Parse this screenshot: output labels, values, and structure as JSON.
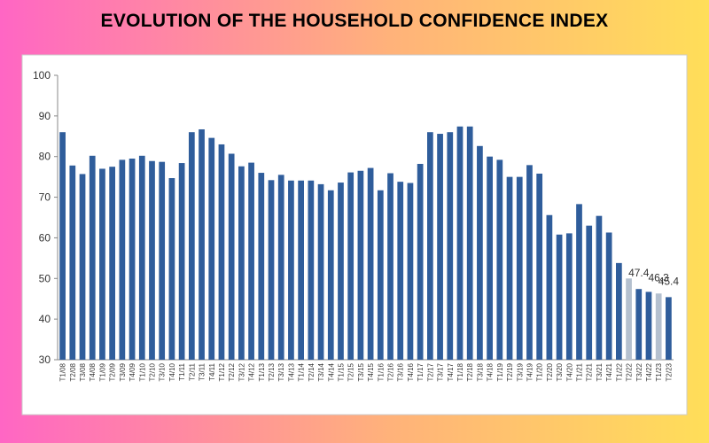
{
  "chart_data": {
    "type": "bar",
    "title": "EVOLUTION OF THE HOUSEHOLD CONFIDENCE INDEX",
    "categories": [
      "T1/08",
      "T2/08",
      "T3/08",
      "T4/08",
      "T1/09",
      "T2/09",
      "T3/09",
      "T4/09",
      "T1/10",
      "T2/10",
      "T3/10",
      "T4/10",
      "T1/11",
      "T2/11",
      "T3/11",
      "T4/11",
      "T1/12",
      "T2/12",
      "T3/12",
      "T4/12",
      "T1/13",
      "T2/13",
      "T3/13",
      "T4/13",
      "T1/14",
      "T2/14",
      "T3/14",
      "T4/14",
      "T1/15",
      "T2/15",
      "T3/15",
      "T4/15",
      "T1/16",
      "T2/16",
      "T3/16",
      "T4/16",
      "T1/17",
      "T2/17",
      "T3/17",
      "T4/17",
      "T1/18",
      "T2/18",
      "T3/18",
      "T4/18",
      "T1/19",
      "T2/19",
      "T3/19",
      "T4/19",
      "T1/20",
      "T2/20",
      "T3/20",
      "T4/20",
      "T1/21",
      "T2/21",
      "T3/21",
      "T4/21",
      "T1/22",
      "T2/22",
      "T3/22",
      "T4/22",
      "T1/23",
      "T2/23"
    ],
    "values": [
      86,
      77.8,
      75.7,
      80.2,
      77,
      77.5,
      79.2,
      79.5,
      80.2,
      78.9,
      78.7,
      74.7,
      78.4,
      86,
      86.7,
      84.6,
      83,
      80.7,
      77.6,
      78.5,
      76,
      74.2,
      75.5,
      74.1,
      74.1,
      74.1,
      73.2,
      71.7,
      73.6,
      76.1,
      76.5,
      77.2,
      71.7,
      75.9,
      73.8,
      73.5,
      78.2,
      86,
      85.6,
      86,
      87.4,
      87.4,
      82.6,
      80,
      79.2,
      75,
      75,
      77.9,
      75.8,
      65.6,
      60.8,
      61.1,
      68.3,
      63,
      65.4,
      61.3,
      53.8,
      50,
      47.4,
      46.7,
      46.3,
      45.4
    ],
    "value_labels": [
      null,
      null,
      null,
      null,
      null,
      null,
      null,
      null,
      null,
      null,
      null,
      null,
      null,
      null,
      null,
      null,
      null,
      null,
      null,
      null,
      null,
      null,
      null,
      null,
      null,
      null,
      null,
      null,
      null,
      null,
      null,
      null,
      null,
      null,
      null,
      null,
      null,
      null,
      null,
      null,
      null,
      null,
      null,
      null,
      null,
      null,
      null,
      null,
      null,
      null,
      null,
      null,
      null,
      null,
      null,
      null,
      null,
      null,
      "47.4",
      null,
      "46.3",
      "45.4"
    ],
    "colors": [
      "#2f5d9b",
      "#2f5d9b",
      "#2f5d9b",
      "#2f5d9b",
      "#2f5d9b",
      "#2f5d9b",
      "#2f5d9b",
      "#2f5d9b",
      "#2f5d9b",
      "#2f5d9b",
      "#2f5d9b",
      "#2f5d9b",
      "#2f5d9b",
      "#2f5d9b",
      "#2f5d9b",
      "#2f5d9b",
      "#2f5d9b",
      "#2f5d9b",
      "#2f5d9b",
      "#2f5d9b",
      "#2f5d9b",
      "#2f5d9b",
      "#2f5d9b",
      "#2f5d9b",
      "#2f5d9b",
      "#2f5d9b",
      "#2f5d9b",
      "#2f5d9b",
      "#2f5d9b",
      "#2f5d9b",
      "#2f5d9b",
      "#2f5d9b",
      "#2f5d9b",
      "#2f5d9b",
      "#2f5d9b",
      "#2f5d9b",
      "#2f5d9b",
      "#2f5d9b",
      "#2f5d9b",
      "#2f5d9b",
      "#2f5d9b",
      "#2f5d9b",
      "#2f5d9b",
      "#2f5d9b",
      "#2f5d9b",
      "#2f5d9b",
      "#2f5d9b",
      "#2f5d9b",
      "#2f5d9b",
      "#2f5d9b",
      "#2f5d9b",
      "#2f5d9b",
      "#2f5d9b",
      "#2f5d9b",
      "#2f5d9b",
      "#2f5d9b",
      "#2f5d9b",
      "#b4c0cf",
      "#2f5d9b",
      "#2f5d9b",
      "#b4c0cf",
      "#2f5d9b"
    ],
    "ylim": [
      30,
      100
    ],
    "yticks": [
      30,
      40,
      50,
      60,
      70,
      80,
      90,
      100
    ],
    "grid": false
  }
}
